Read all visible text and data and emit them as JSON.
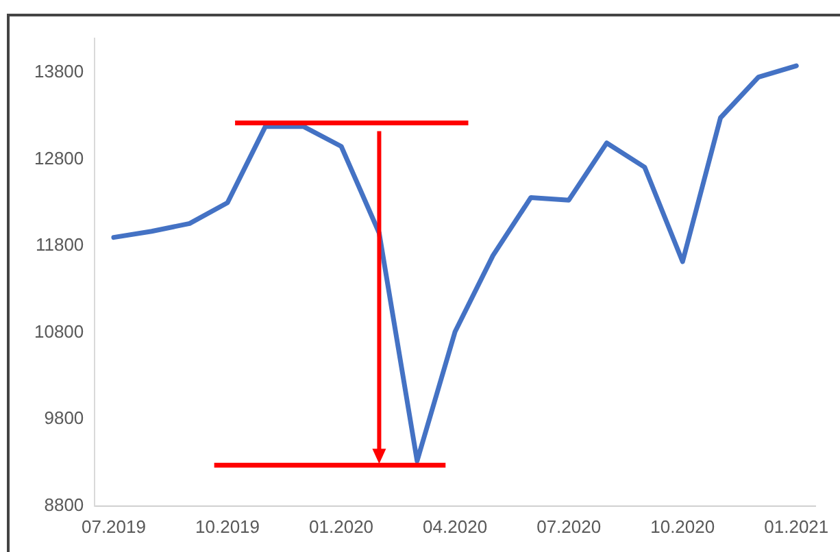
{
  "chart_data": {
    "type": "line",
    "categories": [
      "07.2019",
      null,
      null,
      "10.2019",
      null,
      null,
      "01.2020",
      null,
      null,
      "04.2020",
      null,
      null,
      "07.2020",
      null,
      null,
      "10.2020",
      null,
      null,
      "01.2021"
    ],
    "series": [
      {
        "color": "#4472c4",
        "values": [
          11900,
          11970,
          12060,
          12300,
          13180,
          13180,
          12950,
          11950,
          9320,
          10810,
          11690,
          12360,
          12330,
          12990,
          12710,
          11620,
          13280,
          13750,
          13880
        ]
      }
    ],
    "ylim": [
      8800,
      14200
    ],
    "yticks": [
      8800,
      9800,
      10800,
      11800,
      12800,
      13800
    ],
    "ref_lines": [
      {
        "axis": "y",
        "value": 13220,
        "color": "#ff0000"
      },
      {
        "axis": "y",
        "value": 9270,
        "color": "#ff0000"
      }
    ],
    "grid": false,
    "legend": false,
    "marker": "none",
    "line_style": "solid"
  }
}
